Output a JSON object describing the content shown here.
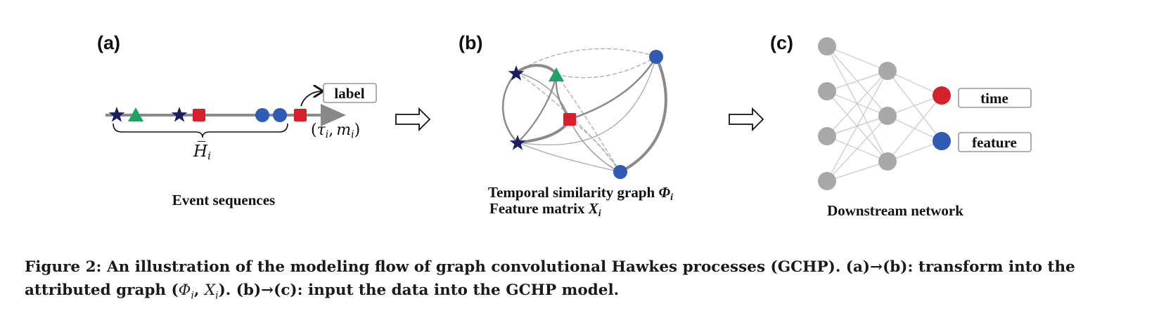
{
  "panels": {
    "a": {
      "label": "(a)",
      "title": "Event sequences",
      "box": "label",
      "math_history": "H̅",
      "history_sub": "i",
      "pair": {
        "open": "(",
        "tau": "τ",
        "sub_i1": "i",
        "comma": ",",
        "m": "m",
        "sub_i2": "i",
        "close": ")"
      }
    },
    "b": {
      "label": "(b)",
      "line1_text": "Temporal similarity graph ",
      "line1_sym": "Φ",
      "line1_sub": "i",
      "line2_text": "Feature matrix ",
      "line2_sym": "X",
      "line2_sub": "i"
    },
    "c": {
      "label": "(c)",
      "title": "Downstream network",
      "box_time": "time",
      "box_feature": "feature"
    }
  },
  "caption": {
    "part1": "Figure 2: An illustration of the modeling flow of graph convolutional Hawkes processes (GCHP). (a)→(b): transform into the attributed graph (",
    "phi": "Φ",
    "sub1": "i",
    "comma": ", ",
    "x": "X",
    "sub2": "i",
    "part2": "). (b)→(c): input the data into the GCHP model."
  },
  "colors": {
    "star": "#1c1f5e",
    "triangle": "#1fa266",
    "square": "#d4202a",
    "circle": "#2f5bb0",
    "node_gray": "#a8a8a8",
    "edge_gray": "#8a8a8a"
  }
}
